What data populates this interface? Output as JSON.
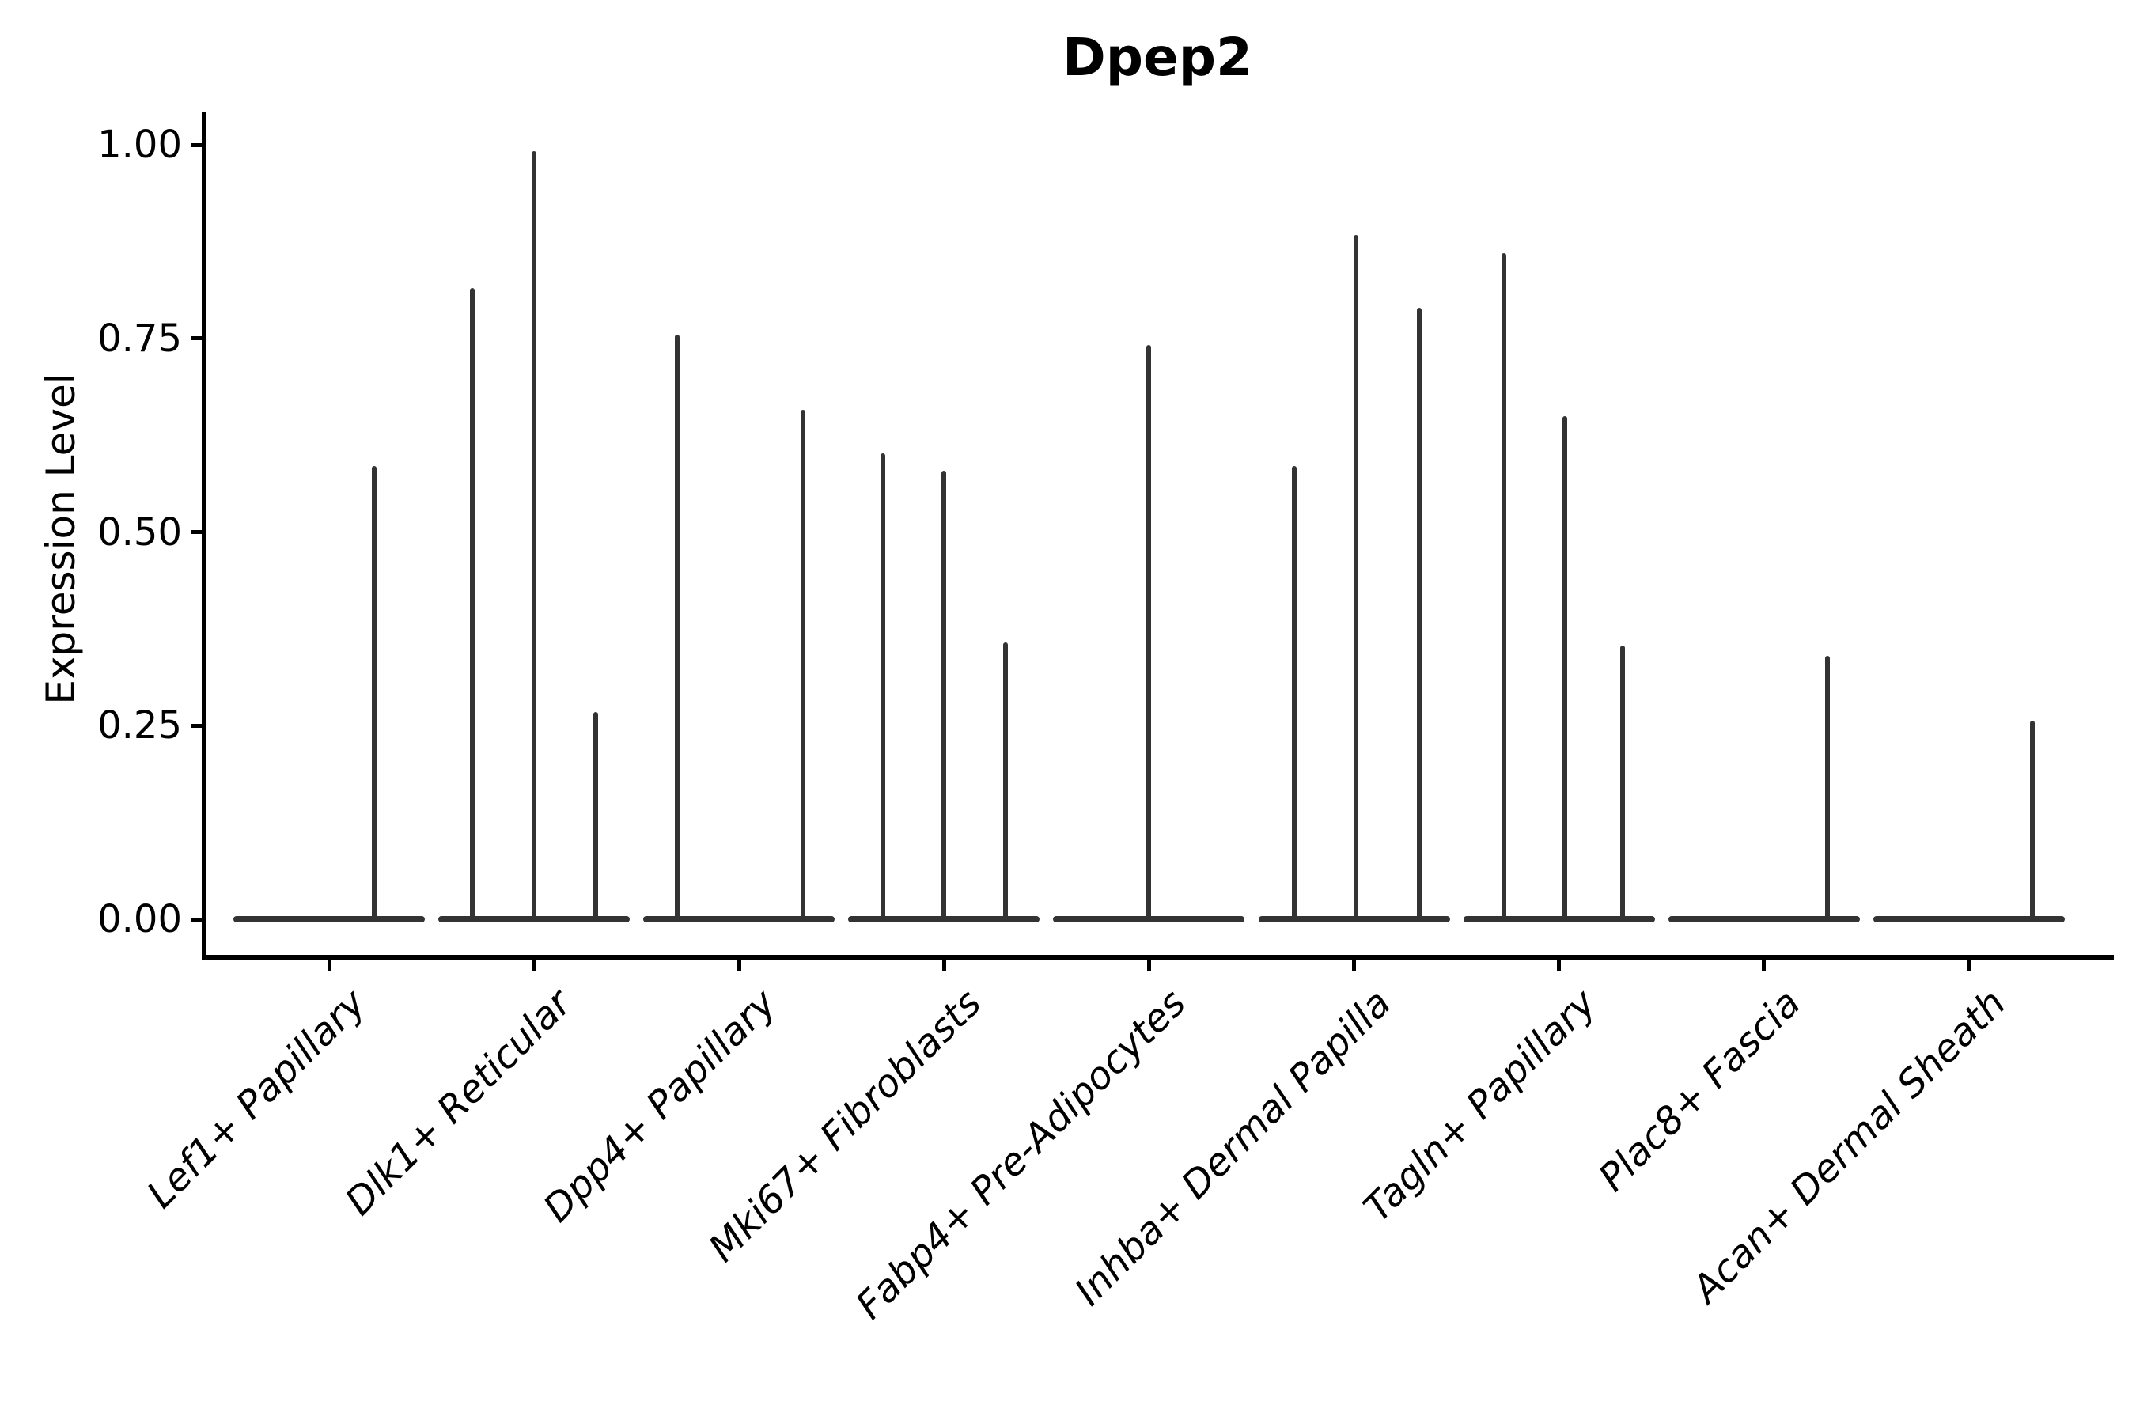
{
  "figure": {
    "title": "Dpep2",
    "y_axis_label": "Expression Level"
  },
  "chart_data": {
    "type": "violin",
    "title": "Dpep2",
    "xlabel": "",
    "ylabel": "Expression Level",
    "ylim": [
      0,
      1.0
    ],
    "y_ticks": [
      0.0,
      0.25,
      0.5,
      0.75,
      1.0
    ],
    "y_tick_labels": [
      "0.00",
      "0.25",
      "0.50",
      "0.75",
      "1.00"
    ],
    "grid": false,
    "legend": "none",
    "description": "Violin plot of Dpep2 expression per fibroblast cluster; each violin is collapsed to a flat baseline at 0 with thin vertical density spikes reaching the maximum expression of rare positive cells.",
    "categories": [
      "Lef1+ Papillary",
      "Dlk1+ Reticular",
      "Dpp4+ Papillary",
      "Mki67+ Fibroblasts",
      "Fabp4+ Pre-Adipocytes",
      "Inhba+ Dermal Papilla",
      "Tagln+ Papillary",
      "Plac8+ Fascia",
      "Acan+ Dermal Sheath"
    ],
    "series": [
      {
        "category": "Lef1+ Papillary",
        "baseline_value": 0,
        "spikes": [
          {
            "x_offset": 0.22,
            "max": 0.585
          }
        ]
      },
      {
        "category": "Dlk1+ Reticular",
        "baseline_value": 0,
        "spikes": [
          {
            "x_offset": -0.3,
            "max": 0.815
          },
          {
            "x_offset": 0.0,
            "max": 0.992
          },
          {
            "x_offset": 0.3,
            "max": 0.268
          }
        ]
      },
      {
        "category": "Dpp4+ Papillary",
        "baseline_value": 0,
        "spikes": [
          {
            "x_offset": -0.3,
            "max": 0.755
          },
          {
            "x_offset": 0.31,
            "max": 0.658
          }
        ]
      },
      {
        "category": "Mki67+ Fibroblasts",
        "baseline_value": 0,
        "spikes": [
          {
            "x_offset": -0.3,
            "max": 0.602
          },
          {
            "x_offset": 0.0,
            "max": 0.579
          },
          {
            "x_offset": 0.3,
            "max": 0.358
          }
        ]
      },
      {
        "category": "Fabp4+ Pre-Adipocytes",
        "baseline_value": 0,
        "spikes": [
          {
            "x_offset": 0.0,
            "max": 0.742
          }
        ]
      },
      {
        "category": "Inhba+ Dermal Papilla",
        "baseline_value": 0,
        "spikes": [
          {
            "x_offset": -0.29,
            "max": 0.585
          },
          {
            "x_offset": 0.01,
            "max": 0.884
          },
          {
            "x_offset": 0.32,
            "max": 0.79
          }
        ]
      },
      {
        "category": "Tagln+ Papillary",
        "baseline_value": 0,
        "spikes": [
          {
            "x_offset": -0.27,
            "max": 0.86
          },
          {
            "x_offset": 0.03,
            "max": 0.65
          },
          {
            "x_offset": 0.31,
            "max": 0.353
          }
        ]
      },
      {
        "category": "Plac8+ Fascia",
        "baseline_value": 0,
        "spikes": [
          {
            "x_offset": 0.31,
            "max": 0.34
          }
        ]
      },
      {
        "category": "Acan+ Dermal Sheath",
        "baseline_value": 0,
        "spikes": [
          {
            "x_offset": 0.31,
            "max": 0.256
          }
        ]
      }
    ],
    "colors": {
      "violin": "#333333",
      "axis": "#000000",
      "text": "#000000",
      "background": "#ffffff"
    }
  }
}
